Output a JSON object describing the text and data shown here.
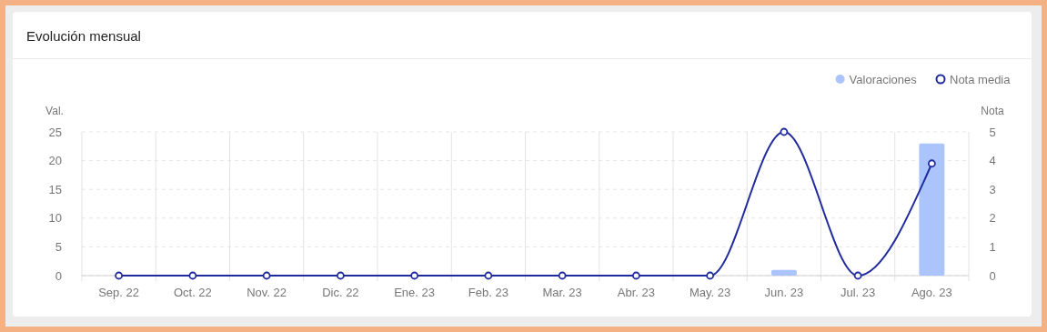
{
  "chart_data": {
    "type": "bar",
    "title": "Evolución mensual",
    "categories": [
      "Sep. 22",
      "Oct. 22",
      "Nov. 22",
      "Dic. 22",
      "Ene. 23",
      "Feb. 23",
      "Mar. 23",
      "Abr. 23",
      "May. 23",
      "Jun. 23",
      "Jul. 23",
      "Ago. 23"
    ],
    "series": [
      {
        "name": "Valoraciones",
        "color": "#abc5fc",
        "values": [
          0,
          0,
          0,
          0,
          0,
          0,
          0,
          0,
          0,
          1,
          0,
          23
        ]
      },
      {
        "name": "Nota media",
        "type": "line",
        "axis": "y2",
        "color": "#1f2a9c",
        "values": [
          0,
          0,
          0,
          0,
          0,
          0,
          0,
          0,
          0,
          5,
          0,
          3.9
        ]
      }
    ],
    "ylabel": "Val.",
    "y2label": "Nota",
    "ylim": [
      0,
      25
    ],
    "yticks": [
      0,
      5,
      10,
      15,
      20,
      25
    ],
    "y2lim": [
      0,
      5
    ],
    "y2ticks": [
      0,
      1,
      2,
      3,
      4,
      5
    ],
    "grid": true,
    "legend": "top right",
    "marker": "circle"
  }
}
